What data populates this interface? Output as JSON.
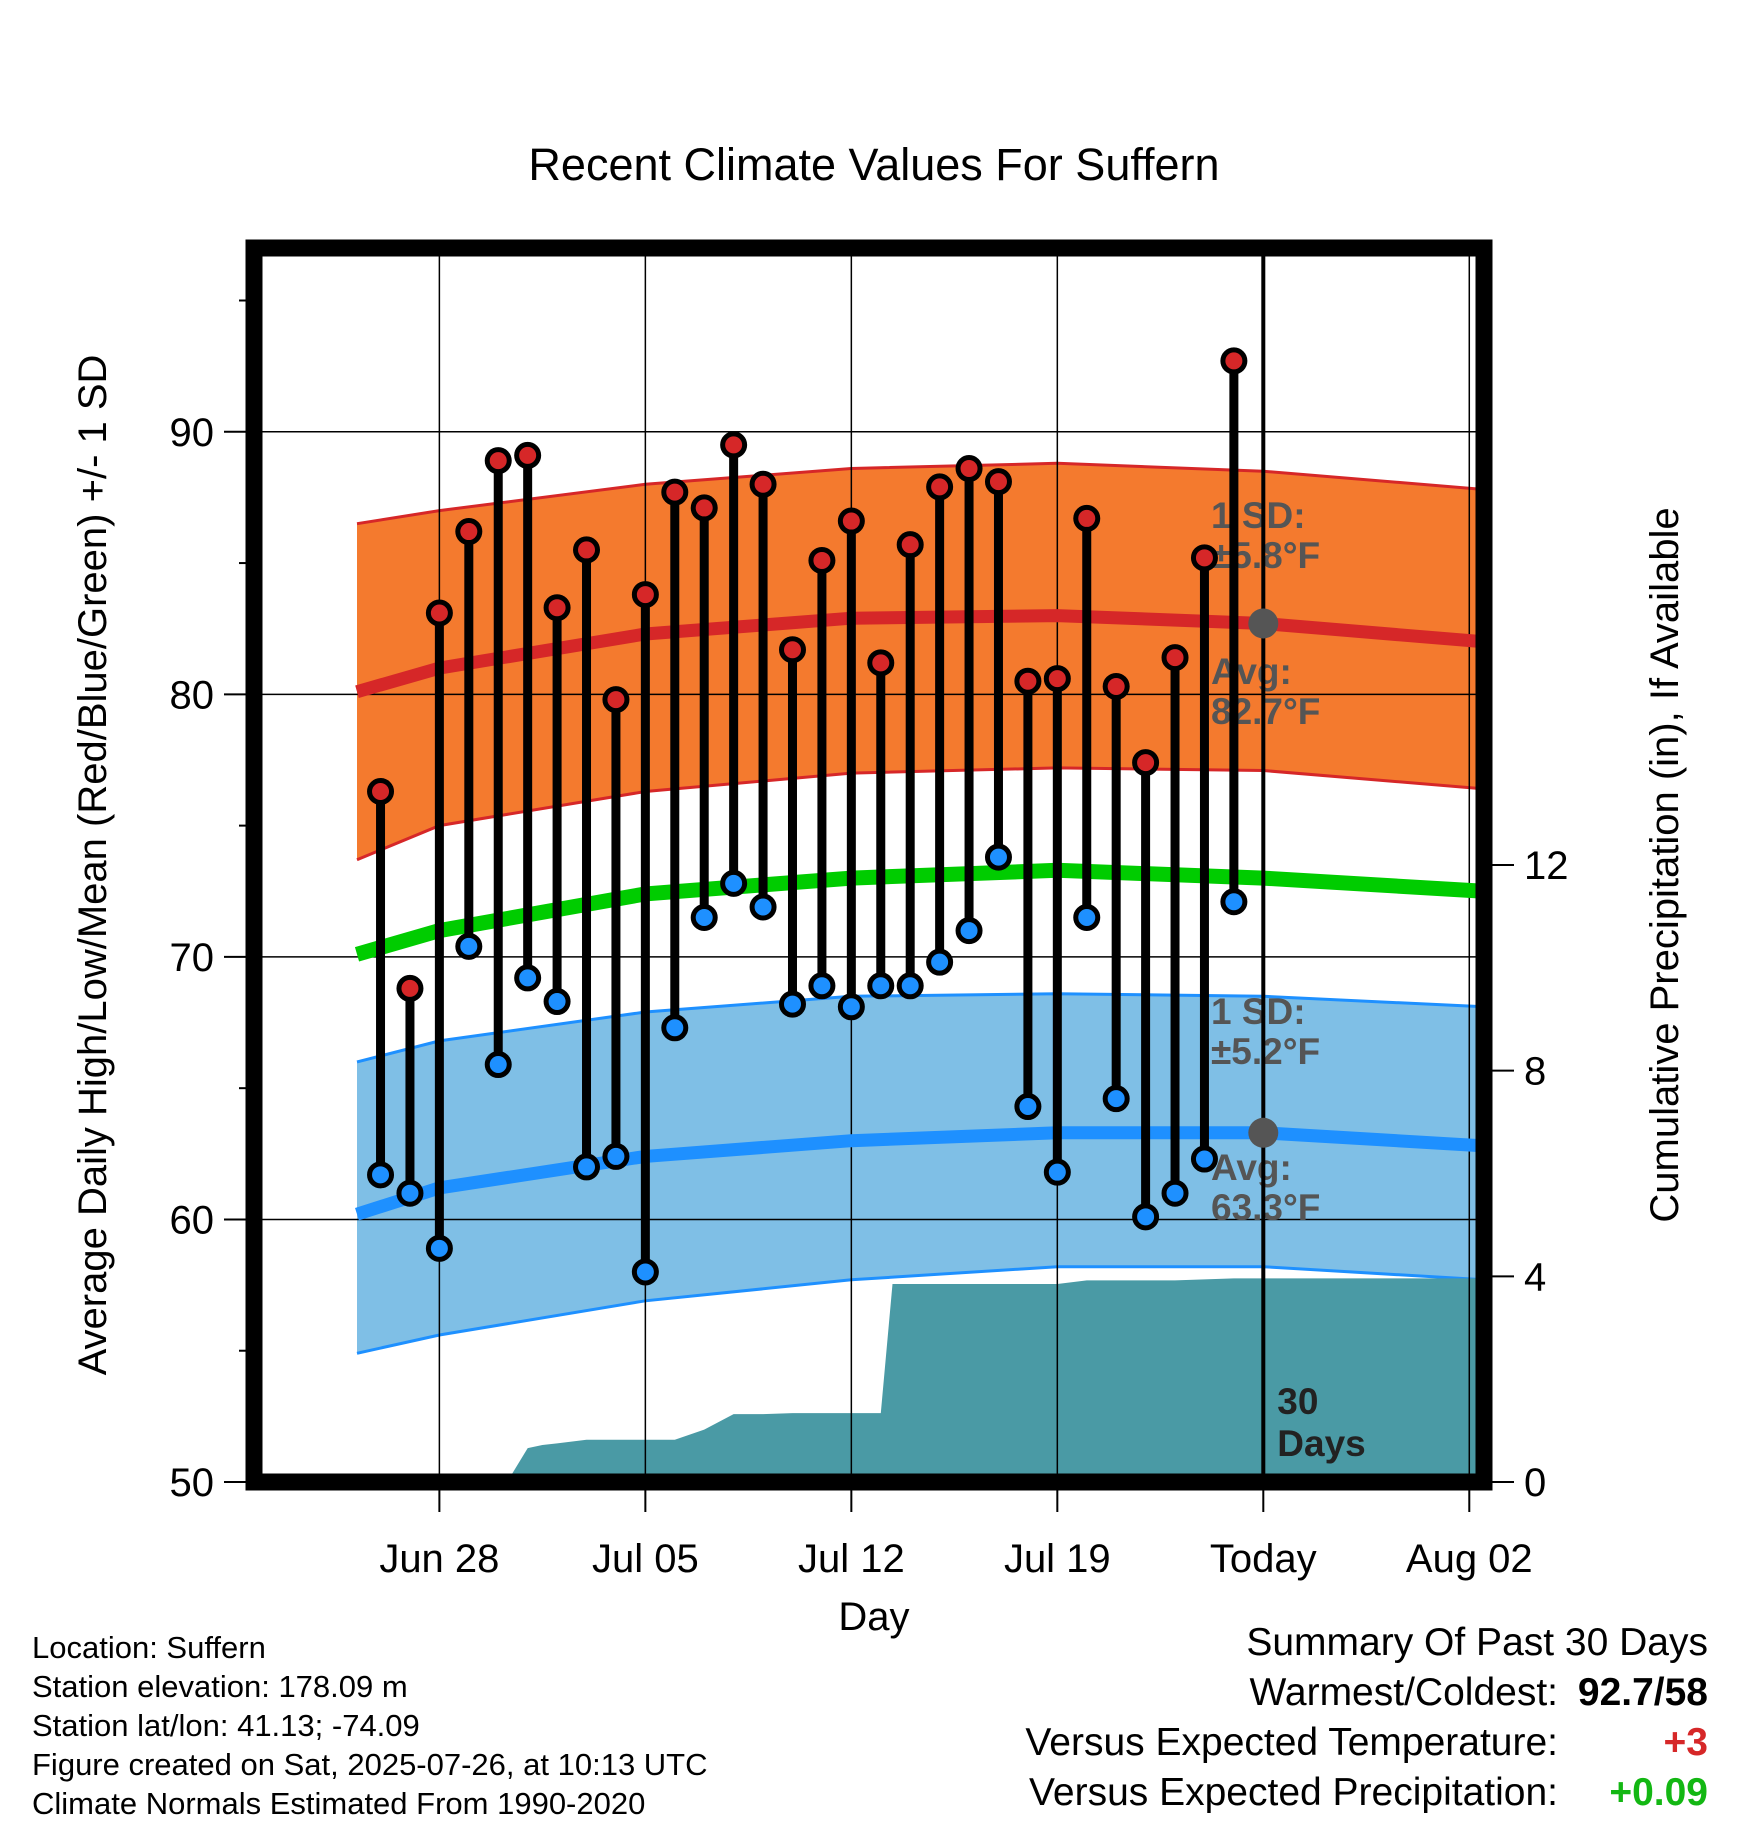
{
  "chart_data": {
    "type": "line",
    "title": "Recent Climate Values For Suffern",
    "xlabel": "Day",
    "ylabel": "Average Daily High/Low/Mean (Red/Blue/Green) +/- 1 SD",
    "y2label": "Cumulative Precipitation (in), If Available",
    "ylim": [
      50,
      97
    ],
    "y2lim": [
      0,
      24
    ],
    "yticks": [
      50,
      60,
      70,
      80,
      90
    ],
    "y2ticks": [
      0,
      4,
      8,
      12
    ],
    "xlim": [
      -6.3,
      35.5
    ],
    "xtick_positions": [
      0,
      7,
      14,
      21,
      28,
      35
    ],
    "xtick_labels": [
      "Jun 28",
      "Jul 05",
      "Jul 12",
      "Jul 19",
      "Today",
      "Aug 02"
    ],
    "today_index": 28,
    "grid": true,
    "normals": {
      "x": [
        -2.8,
        0,
        7,
        14,
        21,
        28,
        35.5
      ],
      "high_avg": [
        80.1,
        81.0,
        82.3,
        82.9,
        83.0,
        82.7,
        82.0
      ],
      "high_upper": [
        86.5,
        87.0,
        88.0,
        88.6,
        88.8,
        88.5,
        87.8
      ],
      "high_lower": [
        73.7,
        75.0,
        76.3,
        77.0,
        77.2,
        77.1,
        76.4
      ],
      "low_avg": [
        60.2,
        61.2,
        62.4,
        63.0,
        63.3,
        63.3,
        62.8
      ],
      "low_upper": [
        66.0,
        66.8,
        67.9,
        68.5,
        68.6,
        68.5,
        68.1
      ],
      "low_lower": [
        54.9,
        55.6,
        56.9,
        57.7,
        58.2,
        58.2,
        57.7
      ],
      "mean_avg": [
        70.1,
        71.0,
        72.4,
        73.0,
        73.3,
        73.0,
        72.5
      ]
    },
    "series": [
      {
        "name": "High",
        "x": [
          -2,
          -1,
          0,
          1,
          2,
          3,
          4,
          5,
          6,
          7,
          8,
          9,
          10,
          11,
          12,
          13,
          14,
          15,
          16,
          17,
          18,
          19,
          20,
          21,
          22,
          23,
          24,
          25,
          26,
          27
        ],
        "values": [
          76.3,
          68.8,
          83.1,
          86.2,
          88.9,
          89.1,
          83.3,
          85.5,
          79.8,
          83.8,
          87.7,
          87.1,
          89.5,
          88.0,
          81.7,
          85.1,
          86.6,
          81.2,
          85.7,
          87.9,
          88.6,
          88.1,
          80.5,
          80.6,
          86.7,
          80.3,
          77.4,
          81.4,
          85.2,
          92.7
        ]
      },
      {
        "name": "Low",
        "x": [
          -2,
          -1,
          0,
          1,
          2,
          3,
          4,
          5,
          6,
          7,
          8,
          9,
          10,
          11,
          12,
          13,
          14,
          15,
          16,
          17,
          18,
          19,
          20,
          21,
          22,
          23,
          24,
          25,
          26,
          27
        ],
        "values": [
          61.7,
          61.0,
          58.9,
          70.4,
          65.9,
          69.2,
          68.3,
          62.0,
          62.4,
          58.0,
          67.3,
          71.5,
          72.8,
          71.9,
          68.2,
          68.9,
          68.1,
          68.9,
          68.9,
          69.8,
          71.0,
          73.8,
          64.3,
          61.8,
          71.5,
          64.6,
          60.1,
          61.0,
          62.3,
          72.1
        ]
      },
      {
        "name": "Cumulative Precipitation",
        "x": [
          2.3,
          3,
          3.5,
          4,
          5,
          6,
          7,
          8,
          9,
          10,
          11,
          12,
          13,
          14,
          15,
          15.4,
          16,
          17,
          18,
          19,
          20,
          21,
          22,
          23,
          24,
          25,
          26,
          27,
          28,
          35.5
        ],
        "values": [
          0,
          0.66,
          0.72,
          0.75,
          0.82,
          0.82,
          0.82,
          0.82,
          1.02,
          1.32,
          1.32,
          1.34,
          1.34,
          1.34,
          1.34,
          3.85,
          3.85,
          3.85,
          3.85,
          3.85,
          3.85,
          3.85,
          3.92,
          3.92,
          3.92,
          3.92,
          3.94,
          3.96,
          3.96,
          3.96
        ]
      }
    ],
    "annotations": {
      "high_sd_label": "1 SD:",
      "high_sd_value": "±5.8°F",
      "high_avg_label": "Avg:",
      "high_avg_value": "82.7°F",
      "low_sd_label": "1 SD:",
      "low_sd_value": "±5.2°F",
      "low_avg_label": "Avg:",
      "low_avg_value": "63.3°F",
      "days_number": "30",
      "days_word": "Days"
    },
    "colors": {
      "high_band": "#f47a2e",
      "high_line": "#d62728",
      "low_band": "#7fbfe6",
      "low_line": "#1e90ff",
      "mean_line": "#00cc00",
      "precip": "#4a9aa5",
      "high_marker": "#d62728",
      "low_marker": "#1e90ff",
      "annotation": "#555555"
    }
  },
  "info": {
    "location": "Location: Suffern",
    "elevation": "Station elevation: 178.09 m",
    "latlon": "Station lat/lon: 41.13; -74.09",
    "created": "Figure created on Sat, 2025-07-26, at 10:13 UTC",
    "normals": "Climate Normals Estimated From 1990-2020"
  },
  "summary": {
    "title": "Summary Of Past 30 Days",
    "warmest_label": "Warmest/Coldest:",
    "warmest_value": "92.7/58",
    "temp_label": "Versus Expected Temperature:",
    "temp_value": "+3",
    "precip_label": "Versus Expected Precipitation:",
    "precip_value": "+0.09"
  }
}
